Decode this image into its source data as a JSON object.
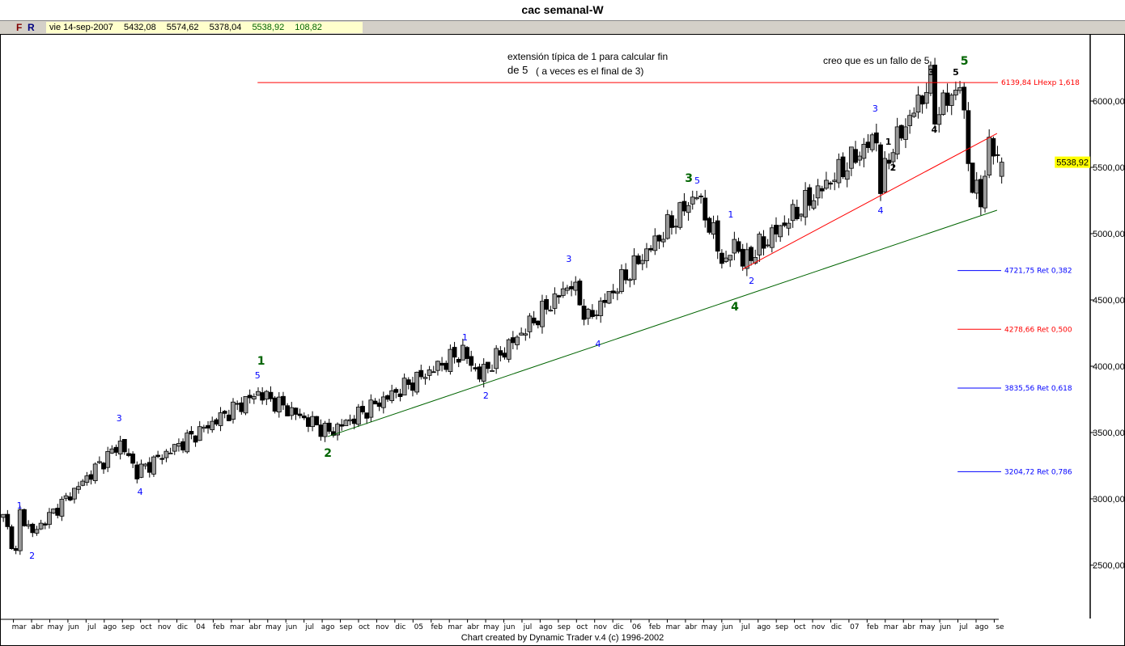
{
  "title": "cac semanal-W",
  "toolbar": {
    "f_label": "F",
    "r_label": "R",
    "info": {
      "date": "vie 14-sep-2007",
      "open": "5432,08",
      "high": "5574,62",
      "low": "5378,04",
      "close": "5538,92",
      "change": "108,82"
    }
  },
  "annotations": {
    "note1_line1": "extensión típica de 1 para calcular fin",
    "note1_line2a": "de 5",
    "note1_line2b": "( a veces es el final de 3)",
    "note2": "creo que es un fallo de 5"
  },
  "credit": "Chart created by Dynamic Trader v.4  (c) 1996-2002",
  "colors": {
    "up": "#999999",
    "down": "#000000",
    "blue": "#0000ff",
    "red": "#ff0000",
    "green": "#006400",
    "highlight": "#ffff00"
  },
  "chart_data": {
    "type": "candlestick",
    "title": "cac semanal-W",
    "ylim": [
      2270,
      6420
    ],
    "y_ticks": [
      "2500,00",
      "3000,00",
      "3500,00",
      "4000,00",
      "4500,00",
      "5000,00",
      "5500,00",
      "6000,00"
    ],
    "y_tick_values": [
      2500,
      3000,
      3500,
      4000,
      4500,
      5000,
      5500,
      6000
    ],
    "last_price_label": "5538,92",
    "last_price": 5538.92,
    "x_range": [
      "2003-02-14",
      "2007-09-14"
    ],
    "x_tick_labels": [
      "mar",
      "abr",
      "may",
      "jun",
      "jul",
      "ago",
      "sep",
      "oct",
      "nov",
      "dic",
      "04",
      "feb",
      "mar",
      "abr",
      "may",
      "jun",
      "jul",
      "ago",
      "sep",
      "oct",
      "nov",
      "dic",
      "05",
      "feb",
      "mar",
      "abr",
      "may",
      "jun",
      "jul",
      "ago",
      "sep",
      "oct",
      "nov",
      "dic",
      "06",
      "feb",
      "mar",
      "abr",
      "may",
      "jun",
      "jul",
      "ago",
      "sep",
      "oct",
      "nov",
      "dic",
      "07",
      "feb",
      "mar",
      "abr",
      "may",
      "jun",
      "jul",
      "ago",
      "se"
    ],
    "x_tick_start": "2003-03",
    "swing_points": [
      [
        "2003-02-14",
        2860
      ],
      [
        "2003-03-07",
        2585
      ],
      [
        "2003-03-14",
        2890
      ],
      [
        "2003-04-04",
        2740
      ],
      [
        "2003-08-29",
        3420
      ],
      [
        "2003-09-26",
        3200
      ],
      [
        "2004-04-16",
        3800
      ],
      [
        "2004-08-13",
        3500
      ],
      [
        "2005-03-25",
        4110
      ],
      [
        "2005-04-22",
        3930
      ],
      [
        "2005-09-23",
        4630
      ],
      [
        "2005-10-21",
        4350
      ],
      [
        "2006-04-21",
        5300
      ],
      [
        "2006-06-09",
        4750
      ],
      [
        "2006-06-23",
        4960
      ],
      [
        "2006-07-07",
        4780
      ],
      [
        "2007-02-16",
        5730
      ],
      [
        "2007-02-23",
        5330
      ],
      [
        "2007-03-09",
        5600
      ],
      [
        "2007-05-18",
        6150
      ],
      [
        "2007-05-25",
        5900
      ],
      [
        "2007-07-06",
        6120
      ],
      [
        "2007-07-27",
        5330
      ],
      [
        "2007-08-10",
        5270
      ],
      [
        "2007-08-24",
        5660
      ],
      [
        "2007-09-14",
        5538.92
      ]
    ],
    "last_candle": {
      "open": 5432.08,
      "high": 5574.62,
      "low": 5378.04,
      "close": 5538.92
    },
    "wave_labels": [
      {
        "date": "2003-03-13",
        "price": 2950,
        "text": "1",
        "color": "blue"
      },
      {
        "date": "2003-04-03",
        "price": 2573,
        "text": "2",
        "color": "blue"
      },
      {
        "date": "2003-08-27",
        "price": 3610,
        "text": "3",
        "color": "blue"
      },
      {
        "date": "2003-10-01",
        "price": 3055,
        "text": "4",
        "color": "blue"
      },
      {
        "date": "2004-04-15",
        "price": 3933,
        "text": "5",
        "color": "blue"
      },
      {
        "date": "2004-04-21",
        "price": 4037,
        "text": "1",
        "color": "green"
      },
      {
        "date": "2004-08-11",
        "price": 3341,
        "text": "2",
        "color": "green"
      },
      {
        "date": "2005-03-29",
        "price": 4220,
        "text": "1",
        "color": "blue"
      },
      {
        "date": "2005-05-03",
        "price": 3780,
        "text": "2",
        "color": "blue"
      },
      {
        "date": "2005-09-19",
        "price": 4811,
        "text": "3",
        "color": "blue"
      },
      {
        "date": "2005-11-07",
        "price": 4171,
        "text": "4",
        "color": "blue"
      },
      {
        "date": "2006-04-08",
        "price": 5415,
        "text": "3",
        "color": "green"
      },
      {
        "date": "2006-04-22",
        "price": 5402,
        "text": "5",
        "color": "blue"
      },
      {
        "date": "2006-06-17",
        "price": 5146,
        "text": "1",
        "color": "blue"
      },
      {
        "date": "2006-07-22",
        "price": 4646,
        "text": "2",
        "color": "blue"
      },
      {
        "date": "2006-06-24",
        "price": 4445,
        "text": "4",
        "color": "green"
      },
      {
        "date": "2007-02-14",
        "price": 5945,
        "text": "3",
        "color": "blue"
      },
      {
        "date": "2007-02-23",
        "price": 5177,
        "text": "4",
        "color": "blue"
      },
      {
        "date": "2007-03-08",
        "price": 5695,
        "text": "1",
        "color": "black"
      },
      {
        "date": "2007-03-16",
        "price": 5500,
        "text": "2",
        "color": "black"
      },
      {
        "date": "2007-05-19",
        "price": 6220,
        "text": "3",
        "color": "black"
      },
      {
        "date": "2007-05-24",
        "price": 5787,
        "text": "4",
        "color": "black"
      },
      {
        "date": "2007-06-29",
        "price": 6220,
        "text": "5",
        "color": "black"
      },
      {
        "date": "2007-06-29",
        "price": 6299,
        "text": "5",
        "color": "green"
      }
    ],
    "trendlines": [
      {
        "color": "green",
        "from": [
          "2004-08-11",
          3470
        ],
        "to": [
          "2007-09-06",
          5177
        ]
      },
      {
        "color": "red",
        "from": [
          "2006-07-07",
          4732
        ],
        "to": [
          "2007-09-06",
          5756
        ]
      }
    ],
    "levels": [
      {
        "price": 6139.84,
        "label": "6139,84 LHexp 1,618",
        "color": "red",
        "from": "2004-04-15"
      },
      {
        "price": 4721.75,
        "label": "4721,75 Ret 0,382",
        "color": "blue",
        "from": "2007-07-02"
      },
      {
        "price": 4278.66,
        "label": "4278,66 Ret 0,500",
        "color": "red",
        "from": "2007-07-02"
      },
      {
        "price": 3835.56,
        "label": "3835,56 Ret 0,618",
        "color": "blue",
        "from": "2007-07-02"
      },
      {
        "price": 3204.72,
        "label": "3204,72 Ret 0,786",
        "color": "blue",
        "from": "2007-07-02"
      }
    ]
  }
}
